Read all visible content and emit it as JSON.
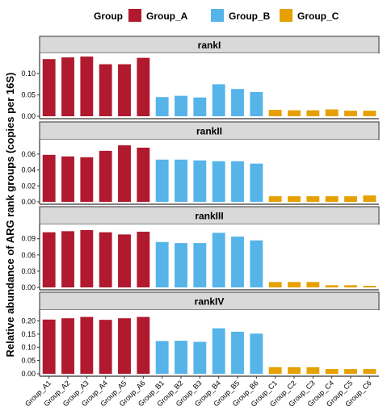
{
  "chart_data": {
    "type": "bar",
    "ylabel": "Relative abundance of ARG rank groups (copies per 16S)",
    "legend": {
      "title": "Group",
      "position": "top",
      "entries": [
        {
          "name": "Group_A",
          "color": "#B0192E"
        },
        {
          "name": "Group_B",
          "color": "#56B4E9"
        },
        {
          "name": "Group_C",
          "color": "#E6A100"
        }
      ]
    },
    "categories": [
      "Group_A1",
      "Group_A2",
      "Group_A3",
      "Group_A4",
      "Group_A5",
      "Group_A6",
      "Group_B1",
      "Group_B2",
      "Group_B3",
      "Group_B4",
      "Group_B5",
      "Group_B6",
      "Group_C1",
      "Group_C2",
      "Group_C3",
      "Group_C4",
      "Group_C5",
      "Group_C6"
    ],
    "category_groups": [
      "Group_A",
      "Group_A",
      "Group_A",
      "Group_A",
      "Group_A",
      "Group_A",
      "Group_B",
      "Group_B",
      "Group_B",
      "Group_B",
      "Group_B",
      "Group_B",
      "Group_C",
      "Group_C",
      "Group_C",
      "Group_C",
      "Group_C",
      "Group_C"
    ],
    "panels": [
      {
        "title": "rankI",
        "ylim": [
          0,
          0.142
        ],
        "yticks": [
          0.0,
          0.05,
          0.1
        ],
        "ytick_labels": [
          "0.00",
          "0.05",
          "0.10"
        ],
        "values": [
          0.134,
          0.138,
          0.14,
          0.122,
          0.122,
          0.137,
          0.045,
          0.048,
          0.044,
          0.075,
          0.064,
          0.057,
          0.015,
          0.014,
          0.014,
          0.016,
          0.013,
          0.013
        ]
      },
      {
        "title": "rankII",
        "ylim": [
          0,
          0.075
        ],
        "yticks": [
          0.0,
          0.02,
          0.04,
          0.06
        ],
        "ytick_labels": [
          "0.00",
          "0.02",
          "0.04",
          "0.06"
        ],
        "values": [
          0.059,
          0.057,
          0.056,
          0.064,
          0.071,
          0.068,
          0.053,
          0.053,
          0.052,
          0.051,
          0.051,
          0.048,
          0.007,
          0.007,
          0.007,
          0.007,
          0.007,
          0.008
        ]
      },
      {
        "title": "rankIII",
        "ylim": [
          0,
          0.112
        ],
        "yticks": [
          0.0,
          0.03,
          0.06,
          0.09
        ],
        "ytick_labels": [
          "0.00",
          "0.03",
          "0.06",
          "0.09"
        ],
        "values": [
          0.102,
          0.104,
          0.106,
          0.102,
          0.098,
          0.103,
          0.084,
          0.082,
          0.082,
          0.101,
          0.094,
          0.087,
          0.01,
          0.01,
          0.01,
          0.004,
          0.004,
          0.003
        ]
      },
      {
        "title": "rankIV",
        "ylim": [
          0,
          0.232
        ],
        "yticks": [
          0.0,
          0.05,
          0.1,
          0.15,
          0.2
        ],
        "ytick_labels": [
          "0.00",
          "0.05",
          "0.10",
          "0.15",
          "0.20"
        ],
        "values": [
          0.205,
          0.21,
          0.215,
          0.204,
          0.21,
          0.215,
          0.124,
          0.125,
          0.121,
          0.172,
          0.159,
          0.152,
          0.025,
          0.025,
          0.025,
          0.018,
          0.018,
          0.018
        ]
      }
    ],
    "grid": false
  }
}
